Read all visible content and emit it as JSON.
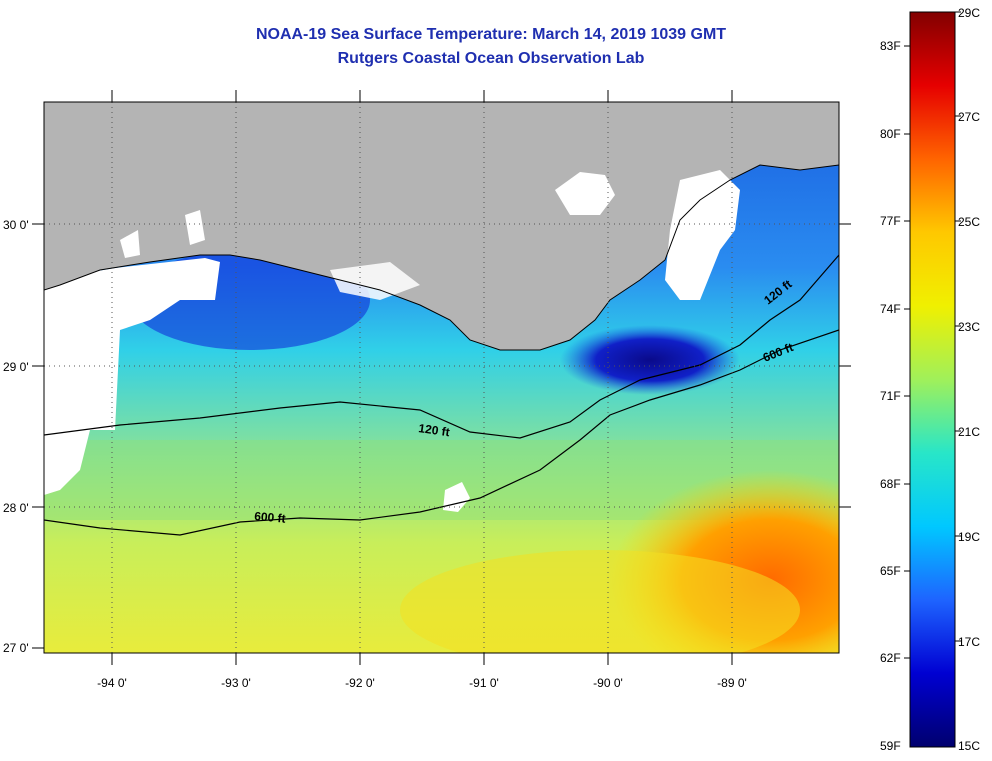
{
  "title": {
    "line1": "NOAA-19 Sea Surface Temperature:  March 14, 2019 1039 GMT",
    "line2": "Rutgers Coastal Ocean Observation Lab"
  },
  "map": {
    "lat_labels": [
      "30 0'",
      "29 0'",
      "28 0'",
      "27 0'"
    ],
    "lon_labels": [
      "-94 0'",
      "-93 0'",
      "-92 0'",
      "-91 0'",
      "-90 0'",
      "-89 0'"
    ],
    "contours": [
      "120 ft",
      "600 ft",
      "120 ft",
      "600 ft"
    ]
  },
  "colorbar": {
    "fahrenheit": [
      "83F",
      "80F",
      "77F",
      "74F",
      "71F",
      "68F",
      "65F",
      "62F",
      "59F"
    ],
    "celsius": [
      "29C",
      "27C",
      "25C",
      "23C",
      "21C",
      "19C",
      "17C",
      "15C"
    ],
    "colors": [
      "#00006e",
      "#0000d2",
      "#1e64ff",
      "#00c8ff",
      "#28e6c8",
      "#a0f05a",
      "#f0f000",
      "#ffc800",
      "#ff6400",
      "#e60000",
      "#820000"
    ]
  }
}
